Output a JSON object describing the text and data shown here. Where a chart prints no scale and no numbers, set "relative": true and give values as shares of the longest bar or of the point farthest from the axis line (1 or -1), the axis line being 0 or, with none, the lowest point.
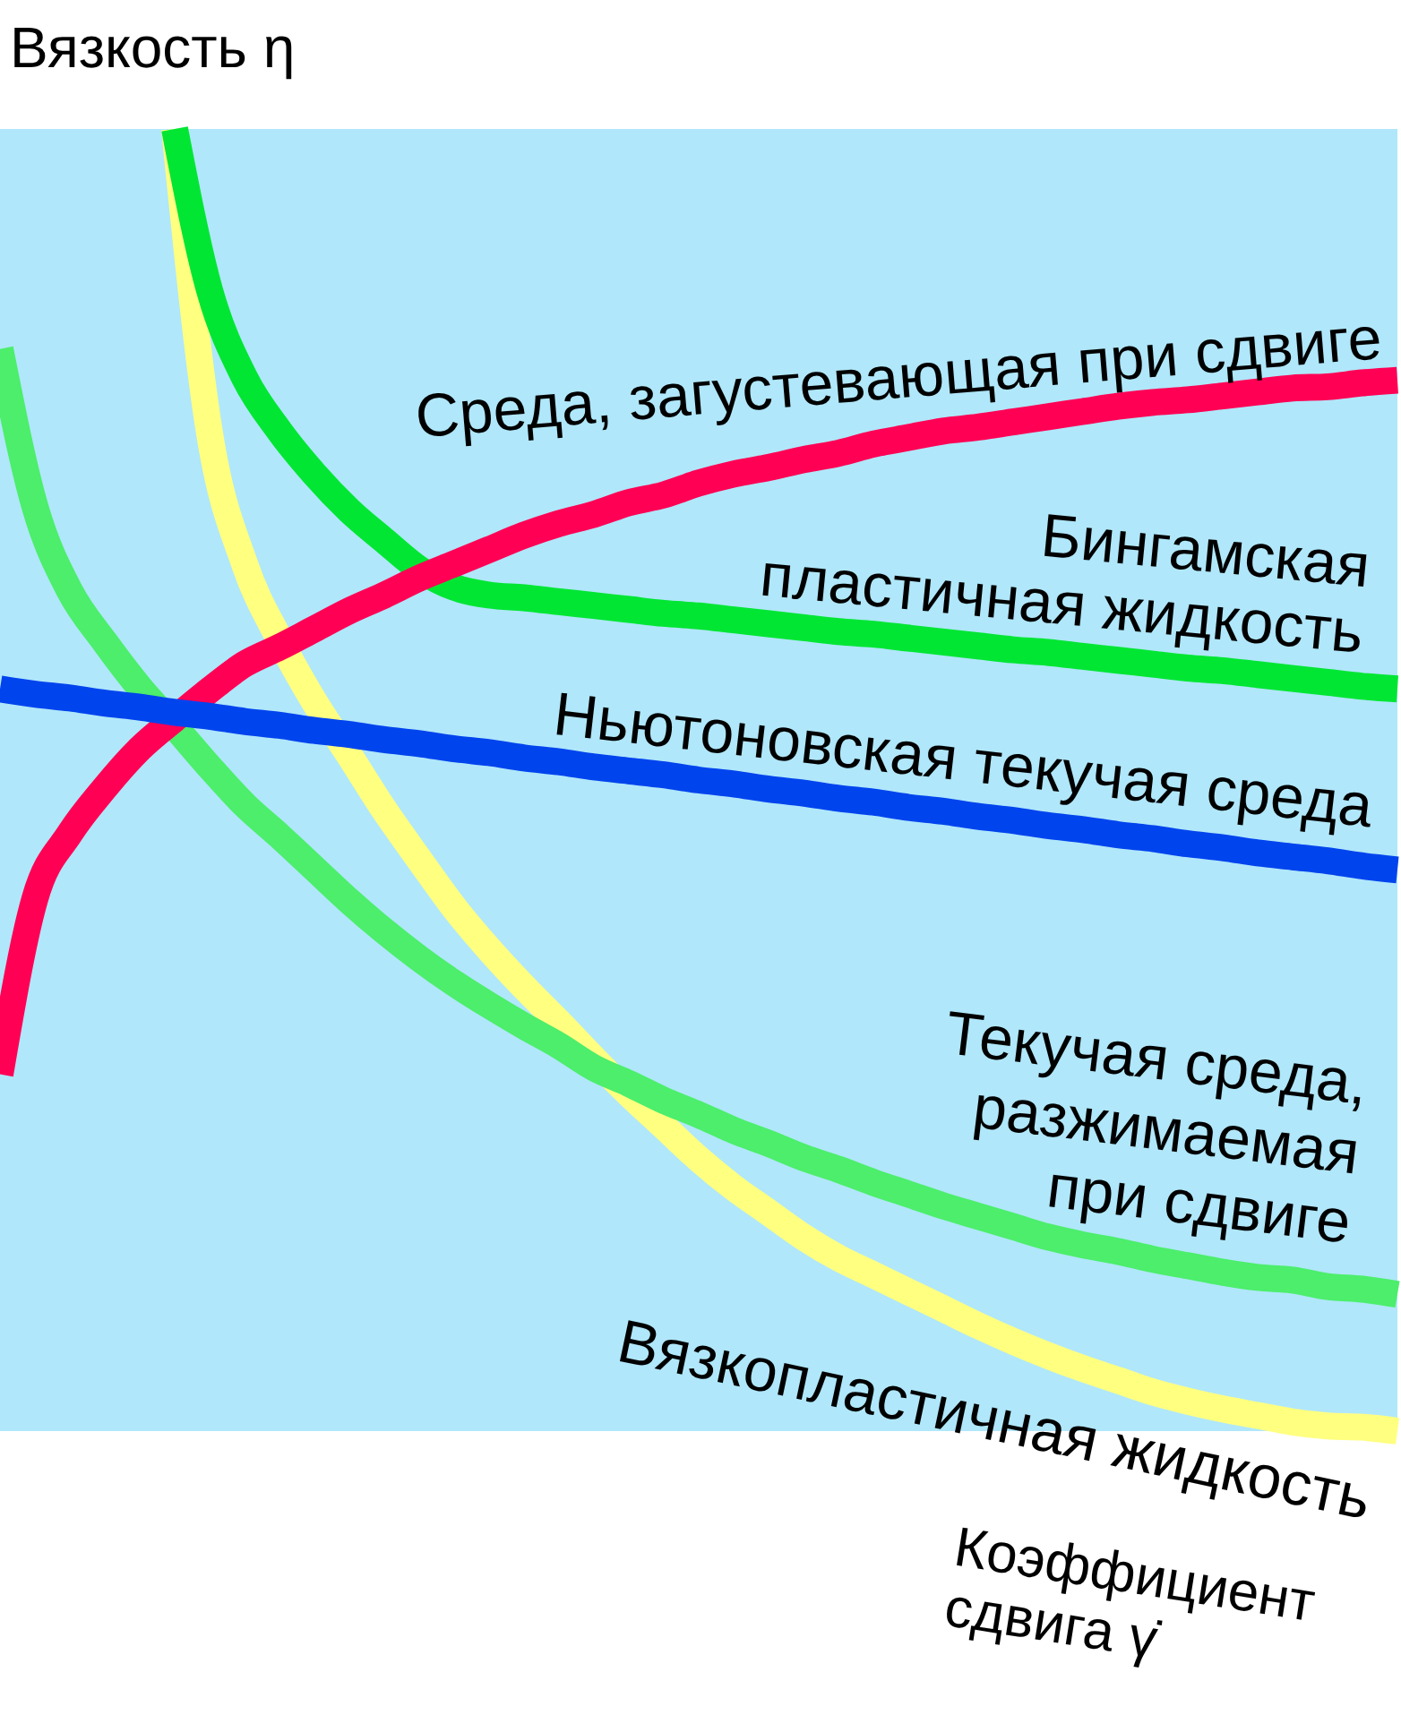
{
  "chart_data": {
    "type": "line",
    "relative": true,
    "ylabel": "Вязкость η",
    "xlabel": "Коэффициент сдвига γ̇",
    "categories": [
      null,
      null,
      null,
      null,
      null,
      null,
      null,
      null,
      null,
      null,
      null,
      null,
      null,
      null,
      null,
      null,
      null,
      null,
      null,
      null,
      null,
      null,
      null,
      null,
      null,
      null,
      null,
      null,
      null,
      null,
      null,
      null,
      null,
      null,
      null,
      null,
      null,
      null,
      null,
      null,
      null
    ],
    "series": [
      {
        "name": "Среда, загустевающая при сдвиге",
        "color": "#ff0055",
        "values": [
          0.274,
          0.409,
          0.459,
          0.494,
          0.524,
          0.547,
          0.569,
          0.589,
          0.602,
          0.616,
          0.63,
          0.642,
          0.655,
          0.666,
          0.677,
          0.688,
          0.697,
          0.704,
          0.713,
          0.719,
          0.728,
          0.735,
          0.74,
          0.746,
          0.751,
          0.758,
          0.763,
          0.768,
          0.771,
          0.775,
          0.779,
          0.783,
          0.787,
          0.79,
          0.792,
          0.795,
          0.798,
          0.801,
          0.802,
          0.805,
          0.807
        ]
      },
      {
        "name": "Бингамская пластичная жидкость",
        "color": "#00e633",
        "values": [
          null,
          null,
          null,
          null,
          null,
          1.0,
          0.876,
          0.809,
          0.768,
          0.735,
          0.707,
          0.684,
          0.662,
          0.648,
          0.642,
          0.64,
          0.637,
          0.634,
          0.631,
          0.628,
          0.626,
          0.623,
          0.62,
          0.617,
          0.614,
          0.612,
          0.609,
          0.606,
          0.603,
          0.6,
          0.598,
          0.595,
          0.592,
          0.589,
          0.586,
          0.584,
          0.581,
          0.578,
          0.575,
          0.572,
          0.57
        ]
      },
      {
        "name": "Ньютоновская текучая среда",
        "color": "#0044ee",
        "values": [
          0.57,
          0.566,
          0.563,
          0.559,
          0.556,
          0.552,
          0.549,
          0.545,
          0.542,
          0.538,
          0.535,
          0.531,
          0.528,
          0.524,
          0.521,
          0.517,
          0.514,
          0.51,
          0.507,
          0.504,
          0.5,
          0.497,
          0.493,
          0.49,
          0.486,
          0.483,
          0.479,
          0.476,
          0.472,
          0.469,
          0.465,
          0.462,
          0.458,
          0.455,
          0.451,
          0.448,
          0.444,
          0.441,
          0.438,
          0.434,
          0.431
        ]
      },
      {
        "name": "Текучая среда, разжимаемая при сдвиге",
        "color": "#4cee6b",
        "values": [
          0.831,
          0.71,
          0.645,
          0.606,
          0.571,
          0.541,
          0.51,
          0.481,
          0.457,
          0.432,
          0.407,
          0.384,
          0.363,
          0.344,
          0.327,
          0.311,
          0.296,
          0.279,
          0.267,
          0.254,
          0.243,
          0.231,
          0.221,
          0.21,
          0.201,
          0.191,
          0.182,
          0.173,
          0.165,
          0.157,
          0.149,
          0.143,
          0.138,
          0.132,
          0.127,
          0.122,
          0.118,
          0.116,
          0.111,
          0.109,
          0.105
        ]
      },
      {
        "name": "Вязкопластичная жидкость",
        "color": "#ffff80",
        "values": [
          null,
          null,
          null,
          null,
          null,
          1.0,
          0.766,
          0.666,
          0.608,
          0.56,
          0.519,
          0.477,
          0.439,
          0.402,
          0.37,
          0.341,
          0.314,
          0.286,
          0.259,
          0.234,
          0.209,
          0.187,
          0.168,
          0.149,
          0.133,
          0.12,
          0.107,
          0.094,
          0.081,
          0.069,
          0.058,
          0.048,
          0.039,
          0.03,
          0.023,
          0.017,
          0.012,
          0.007,
          0.004,
          0.003,
          0.0
        ]
      }
    ]
  }
}
